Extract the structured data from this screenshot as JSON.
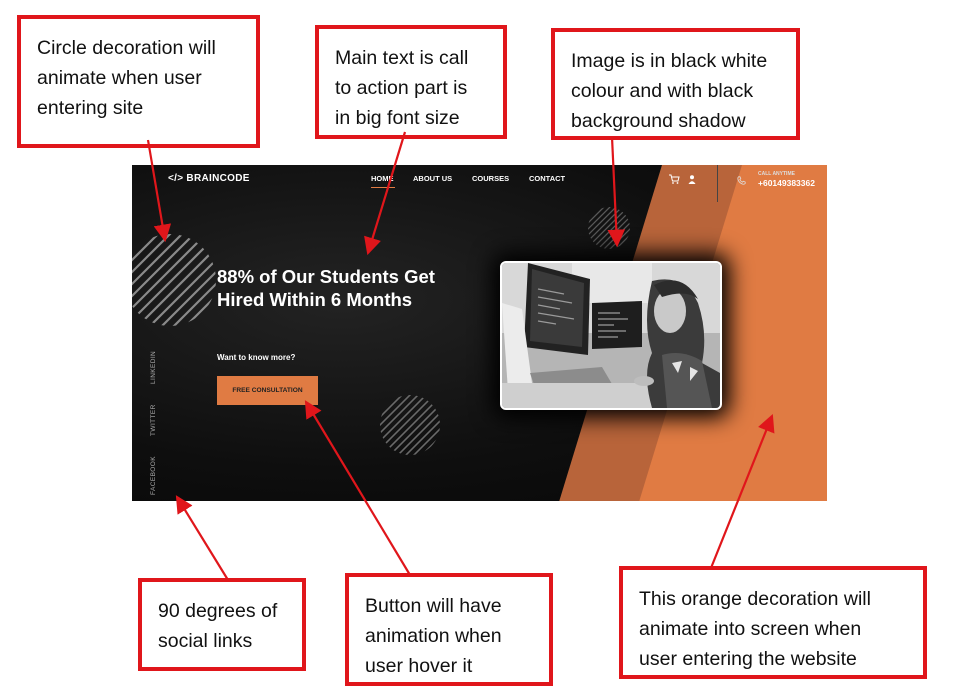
{
  "annotations": {
    "circle_decoration": [
      "Circle decoration will",
      "animate when user",
      "entering site"
    ],
    "main_text": [
      "Main text is call",
      "to action part is",
      "in big font size"
    ],
    "image_style": [
      "Image is in black white",
      "colour and with black",
      "background shadow"
    ],
    "social_links": [
      "90 degrees of",
      "social links"
    ],
    "button_hover": [
      "Button will have",
      "animation when",
      "user hover it"
    ],
    "orange_decoration": [
      "This orange decoration will",
      "animate into screen when",
      "user entering the website"
    ]
  },
  "site": {
    "logo": "</> BRAINCODE",
    "nav": [
      "HOME",
      "ABOUT US",
      "COURSES",
      "CONTACT"
    ],
    "call_label": "CALL ANYTIME",
    "call_number": "+60149383362",
    "headline": "88% of Our Students Get Hired Within 6 Months",
    "subtext": "Want to know more?",
    "cta_label": "FREE CONSULTATION",
    "social": [
      "FACEBOOK",
      "TWITTER",
      "LINKEDIN"
    ],
    "icons": [
      "cart-icon",
      "user-icon",
      "phone-icon"
    ]
  },
  "colors": {
    "annotation_red": "#e0161b",
    "accent_orange": "#e07b43",
    "dark_bg": "#0c0c0c"
  }
}
